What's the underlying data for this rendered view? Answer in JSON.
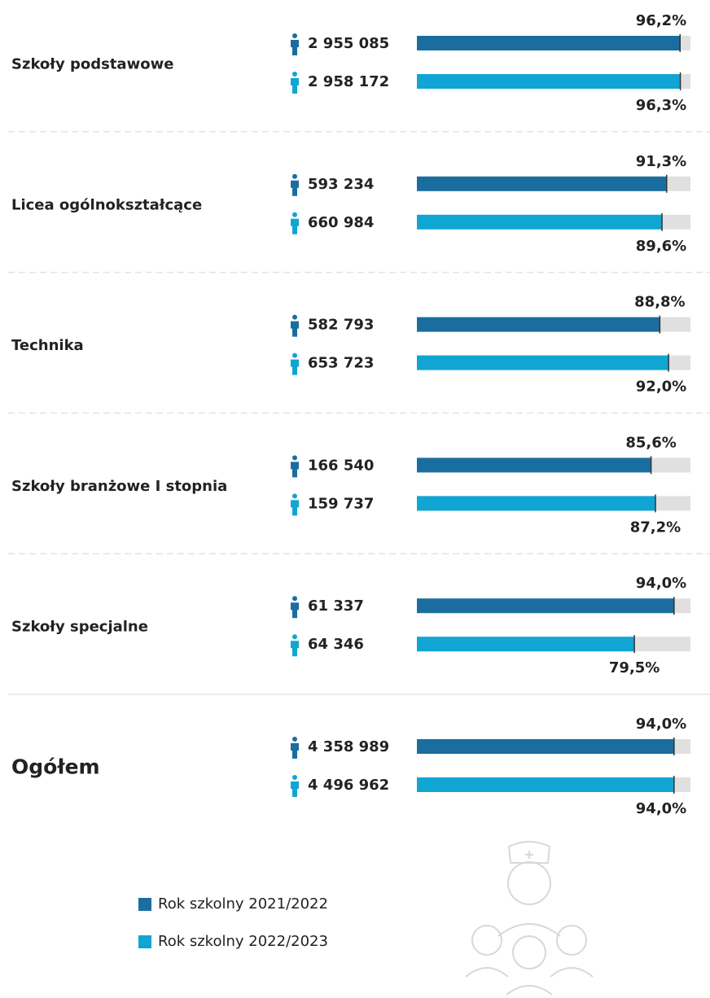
{
  "chart_data": {
    "type": "bar",
    "categories": [
      "Szkoły podstawowe",
      "Licea ogólnokształcące",
      "Technika",
      "Szkoły branżowe I stopnia",
      "Szkoły specjalne",
      "Ogółem"
    ],
    "xlim": [
      0,
      100
    ],
    "series": [
      {
        "name": "Rok szkolny 2021/2022",
        "color": "#1a6e9f",
        "values": [
          96.2,
          91.3,
          88.8,
          85.6,
          94.0,
          94.0
        ],
        "value_labels": [
          "96,2%",
          "91,3%",
          "88,8%",
          "85,6%",
          "94,0%",
          "94,0%"
        ],
        "counts": [
          2955085,
          593234,
          582793,
          166540,
          61337,
          4358989
        ],
        "count_labels": [
          "2 955 085",
          "593 234",
          "582 793",
          "166 540",
          "61 337",
          "4 358 989"
        ]
      },
      {
        "name": "Rok szkolny 2022/2023",
        "color": "#10a5d3",
        "values": [
          96.3,
          89.6,
          92.0,
          87.2,
          79.5,
          94.0
        ],
        "value_labels": [
          "96,3%",
          "89,6%",
          "92,0%",
          "87,2%",
          "79,5%",
          "94,0%"
        ],
        "counts": [
          2958172,
          660984,
          653723,
          159737,
          64346,
          4496962
        ],
        "count_labels": [
          "2 958 172",
          "660 984",
          "653 723",
          "159 737",
          "64 346",
          "4 496 962"
        ]
      }
    ]
  }
}
